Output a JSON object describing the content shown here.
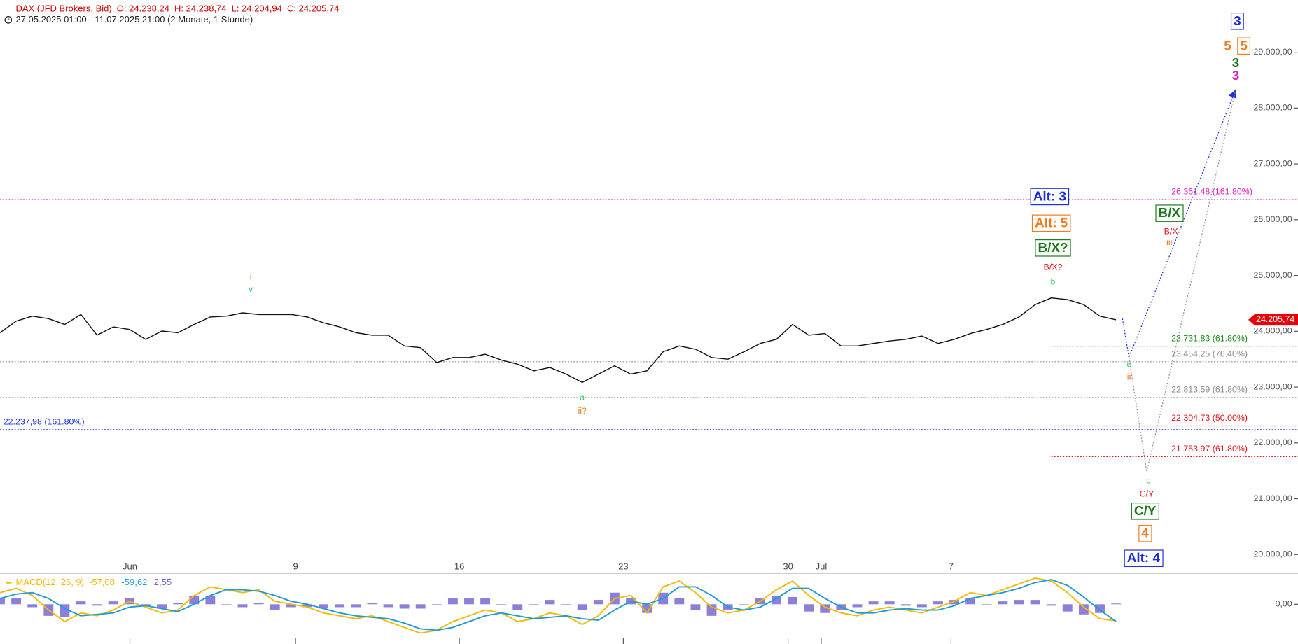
{
  "header": {
    "symbol": "DAX (JFD Brokers, Bid)",
    "open": "O: 24.238,24",
    "high": "H: 24.238,74",
    "low": "L: 24.204,94",
    "close": "C: 24.205,74",
    "range": "27.05.2025 01:00 - 11.07.2025 21:00  (2 Monate, 1 Stunde)"
  },
  "chart_data": [
    {
      "type": "line",
      "x": [
        0,
        1,
        2,
        3,
        4,
        5,
        6,
        7,
        8,
        9,
        10,
        11,
        12,
        13,
        14,
        15,
        16,
        17,
        18,
        19,
        20,
        21,
        22,
        23,
        24,
        25,
        26,
        27,
        28,
        29,
        30,
        31,
        32,
        33,
        34,
        35,
        36,
        37,
        38,
        39,
        40,
        41,
        42,
        43,
        44,
        45,
        46,
        47,
        48,
        49,
        50,
        51,
        52,
        53,
        54,
        55,
        56,
        57,
        58,
        59,
        60,
        61,
        62,
        63,
        64,
        65,
        66,
        67,
        68,
        69
      ],
      "series": [
        {
          "color": "#111111",
          "values": [
            23974,
            24181,
            24270,
            24226,
            24122,
            24300,
            23929,
            24078,
            24033,
            23855,
            24004,
            23974,
            24122,
            24256,
            24270,
            24330,
            24300,
            24300,
            24300,
            24256,
            24152,
            24078,
            23974,
            23929,
            23929,
            23737,
            23707,
            23440,
            23529,
            23529,
            23588,
            23485,
            23410,
            23292,
            23351,
            23232,
            23084,
            23232,
            23381,
            23232,
            23292,
            23633,
            23737,
            23677,
            23529,
            23499,
            23633,
            23781,
            23855,
            24122,
            23929,
            23959,
            23737,
            23737,
            23781,
            23826,
            23855,
            23915,
            23781,
            23855,
            23959,
            24033,
            24122,
            24256,
            24478,
            24597,
            24567,
            24478,
            24270,
            24206
          ]
        }
      ],
      "xlim": [
        0,
        80.25
      ],
      "ylim": [
        19674,
        29935
      ],
      "xticks": [
        {
          "value": 8.03,
          "label": "Jun"
        },
        {
          "value": 18.27,
          "label": "9"
        },
        {
          "value": 28.4,
          "label": "16"
        },
        {
          "value": 38.54,
          "label": "23"
        },
        {
          "value": 48.72,
          "label": "30"
        },
        {
          "value": 50.77,
          "label": "Jul"
        },
        {
          "value": 58.8,
          "label": "7"
        }
      ],
      "yticks": [
        {
          "value": 20000,
          "label": "20.000,00"
        },
        {
          "value": 21000,
          "label": "21.000,00"
        },
        {
          "value": 22000,
          "label": "22.000,00"
        },
        {
          "value": 23000,
          "label": "23.000,00"
        },
        {
          "value": 24000,
          "label": "24.000,00"
        },
        {
          "value": 25000,
          "label": "25.000,00"
        },
        {
          "value": 26000,
          "label": "26.000,00"
        },
        {
          "value": 27000,
          "label": "27.000,00"
        },
        {
          "value": 28000,
          "label": "28.000,00"
        },
        {
          "value": 29000,
          "label": "29.000,00"
        }
      ],
      "last": {
        "value": 24205.74,
        "label": "24.205,74",
        "color": "#e8000b"
      },
      "levels": [
        {
          "value": 26361.48,
          "label": "26.361,48 (161.80%)",
          "color": "#e020c0",
          "label_side": "right"
        },
        {
          "value": 23454.25,
          "label": "23.454,25 (76.40%)",
          "color": "#8a8a8a",
          "label_side": "right"
        },
        {
          "value": 22813.59,
          "label": "22.813,59 (61.80%)",
          "color": "#8a8a8a",
          "label_side": "right"
        },
        {
          "value": 22237.98,
          "label": "22.237,98 (161.80%)",
          "color": "#1a2fd6",
          "label_side": "left"
        },
        {
          "value": 23731.83,
          "label": "23.731,83 (61.80%)",
          "color": "#1a8a1a",
          "label_side": "right",
          "from_x": 65
        },
        {
          "value": 22304.73,
          "label": "22.304,73 (50.00%)",
          "color": "#e0101a",
          "label_side": "right",
          "from_x": 65
        },
        {
          "value": 21753.97,
          "label": "21.753,97 (61.80%)",
          "color": "#e0101a",
          "label_side": "right",
          "from_x": 65
        }
      ],
      "projections": [
        {
          "color": "#1a2fd6",
          "x": [
            69.4,
            69.8,
            76.4
          ],
          "values": [
            24226,
            23529,
            28333
          ],
          "arrow": true
        },
        {
          "color": "#8a8a9a",
          "x": [
            69.8,
            70.9,
            76.4
          ],
          "values": [
            23529,
            21483,
            28333
          ]
        }
      ],
      "annotations": [
        {
          "text": "i",
          "x": 15.5,
          "y": 24967,
          "color": "#f07b1a"
        },
        {
          "text": "v",
          "x": 15.5,
          "y": 24745,
          "color": "#33cc66"
        },
        {
          "text": "a",
          "x": 36.0,
          "y": 22802,
          "color": "#33cc66"
        },
        {
          "text": "ii?",
          "x": 36.0,
          "y": 22565,
          "color": "#f07b1a"
        },
        {
          "text": "b",
          "x": 65.1,
          "y": 24878,
          "color": "#33cc66"
        },
        {
          "text": "B/X?",
          "x": 65.1,
          "y": 25145,
          "color": "#e0101a"
        },
        {
          "text": "B/X?",
          "x": 65.1,
          "y": 25486,
          "color": "#1a7a1a",
          "box": true
        },
        {
          "text": "Alt: 5",
          "x": 65.0,
          "y": 25931,
          "color": "#f07b1a",
          "box": true
        },
        {
          "text": "Alt: 3",
          "x": 64.9,
          "y": 26406,
          "color": "#1a2fd6",
          "box": true
        },
        {
          "text": "c",
          "x": 69.8,
          "y": 23396,
          "color": "#33cc66"
        },
        {
          "text": "ii",
          "x": 69.8,
          "y": 23173,
          "color": "#f07b1a"
        },
        {
          "text": "B/X",
          "x": 72.3,
          "y": 26109,
          "color": "#1a7a1a",
          "box": true
        },
        {
          "text": "B/X",
          "x": 72.4,
          "y": 25783,
          "color": "#e0101a"
        },
        {
          "text": "iii",
          "x": 72.3,
          "y": 25590,
          "color": "#f07b1a"
        },
        {
          "text": "c",
          "x": 71.0,
          "y": 21320,
          "color": "#33cc66"
        },
        {
          "text": "C/Y",
          "x": 70.9,
          "y": 21082,
          "color": "#e0101a"
        },
        {
          "text": "C/Y",
          "x": 70.8,
          "y": 20771,
          "color": "#1a7a1a",
          "box": true
        },
        {
          "text": "4",
          "x": 70.8,
          "y": 20371,
          "color": "#f07b1a",
          "box": true
        },
        {
          "text": "Alt: 4",
          "x": 70.7,
          "y": 19926,
          "color": "#1a2fd6",
          "box": true
        },
        {
          "text": "3",
          "x": 76.5,
          "y": 29549,
          "color": "#1a2fd6",
          "box": true
        },
        {
          "text": "5",
          "x": 75.9,
          "y": 29104,
          "color": "#f07b1a",
          "bold": true
        },
        {
          "text": "5",
          "x": 76.9,
          "y": 29104,
          "color": "#f07b1a",
          "box": true
        },
        {
          "text": "3",
          "x": 76.4,
          "y": 28793,
          "color": "#1a7a1a",
          "bold": true
        },
        {
          "text": "3",
          "x": 76.4,
          "y": 28570,
          "color": "#e020c0",
          "bold": true
        }
      ]
    },
    {
      "type": "macd",
      "title": "MACD(12, 26, 9)",
      "x": [
        0,
        1,
        2,
        3,
        4,
        5,
        6,
        7,
        8,
        9,
        10,
        11,
        12,
        13,
        14,
        15,
        16,
        17,
        18,
        19,
        20,
        21,
        22,
        23,
        24,
        25,
        26,
        27,
        28,
        29,
        30,
        31,
        32,
        33,
        34,
        35,
        36,
        37,
        38,
        39,
        40,
        41,
        42,
        43,
        44,
        45,
        46,
        47,
        48,
        49,
        50,
        51,
        52,
        53,
        54,
        55,
        56,
        57,
        58,
        59,
        60,
        61,
        62,
        63,
        64,
        65,
        66,
        67,
        68,
        69
      ],
      "ylim": [
        -137,
        103
      ],
      "yticks": [
        {
          "value": 0,
          "label": "0,00"
        }
      ],
      "series": [
        {
          "kind": "bar",
          "color": "#6f5fd0",
          "values": [
            20,
            20,
            -10,
            -40,
            -45,
            10,
            -5,
            10,
            20,
            -5,
            -15,
            5,
            30,
            30,
            0,
            -10,
            5,
            -20,
            -10,
            -10,
            -15,
            -10,
            -10,
            5,
            -10,
            -15,
            -15,
            0,
            20,
            20,
            20,
            0,
            -20,
            0,
            15,
            0,
            -20,
            15,
            40,
            20,
            -30,
            40,
            20,
            -20,
            -40,
            -20,
            0,
            20,
            30,
            25,
            -25,
            -30,
            -20,
            -10,
            10,
            10,
            -5,
            -10,
            10,
            15,
            20,
            0,
            10,
            15,
            15,
            -5,
            -25,
            -35,
            -30,
            2.55
          ],
          "value_labels": [
            null,
            null,
            null,
            null,
            null,
            null,
            null,
            null,
            null,
            null,
            null,
            null,
            null,
            null,
            null,
            null,
            null,
            null,
            null,
            null,
            null,
            null,
            null,
            null,
            null,
            null,
            null,
            null,
            null,
            null,
            null,
            null,
            null,
            null,
            null,
            null,
            null,
            null,
            null,
            null,
            null,
            null,
            null,
            null,
            null,
            null,
            null,
            null,
            null,
            null,
            null,
            null,
            null,
            null,
            null,
            null,
            null,
            null,
            null,
            null,
            null,
            null,
            null,
            null,
            null,
            null,
            null,
            null,
            null,
            "2,55"
          ]
        },
        {
          "kind": "line",
          "color": "#f5b800",
          "values": [
            40,
            55,
            30,
            -20,
            -60,
            -30,
            -40,
            -20,
            10,
            -10,
            -30,
            -20,
            30,
            60,
            50,
            40,
            50,
            10,
            0,
            -10,
            -30,
            -40,
            -50,
            -40,
            -60,
            -80,
            -100,
            -90,
            -60,
            -40,
            -20,
            -30,
            -60,
            -50,
            -30,
            -40,
            -70,
            -40,
            20,
            30,
            -30,
            60,
            80,
            40,
            -10,
            -30,
            -20,
            10,
            50,
            80,
            30,
            -10,
            -30,
            -40,
            -20,
            -10,
            -20,
            -30,
            -10,
            10,
            40,
            30,
            50,
            70,
            90,
            80,
            40,
            -10,
            -50,
            -57.08
          ],
          "value_labels": [
            null,
            null,
            null,
            null,
            null,
            null,
            null,
            null,
            null,
            null,
            null,
            null,
            null,
            null,
            null,
            null,
            null,
            null,
            null,
            null,
            null,
            null,
            null,
            null,
            null,
            null,
            null,
            null,
            null,
            null,
            null,
            null,
            null,
            null,
            null,
            null,
            null,
            null,
            null,
            null,
            null,
            null,
            null,
            null,
            null,
            null,
            null,
            null,
            null,
            null,
            null,
            null,
            null,
            null,
            null,
            null,
            null,
            null,
            null,
            null,
            null,
            null,
            null,
            null,
            null,
            null,
            null,
            null,
            null,
            "-57,08"
          ]
        },
        {
          "kind": "line",
          "color": "#1e9bd7",
          "values": [
            20,
            35,
            40,
            20,
            -15,
            -40,
            -35,
            -30,
            -10,
            -5,
            -15,
            -25,
            0,
            30,
            50,
            50,
            45,
            30,
            10,
            0,
            -15,
            -30,
            -40,
            -45,
            -50,
            -65,
            -85,
            -90,
            -80,
            -60,
            -40,
            -30,
            -40,
            -50,
            -45,
            -40,
            -50,
            -55,
            -20,
            10,
            0,
            20,
            60,
            60,
            30,
            -10,
            -20,
            -10,
            20,
            55,
            55,
            20,
            -10,
            -30,
            -30,
            -20,
            -15,
            -20,
            -20,
            -5,
            20,
            30,
            40,
            55,
            75,
            85,
            65,
            25,
            -20,
            -59.62
          ],
          "value_labels": [
            null,
            null,
            null,
            null,
            null,
            null,
            null,
            null,
            null,
            null,
            null,
            null,
            null,
            null,
            null,
            null,
            null,
            null,
            null,
            null,
            null,
            null,
            null,
            null,
            null,
            null,
            null,
            null,
            null,
            null,
            null,
            null,
            null,
            null,
            null,
            null,
            null,
            null,
            null,
            null,
            null,
            null,
            null,
            null,
            null,
            null,
            null,
            null,
            null,
            null,
            null,
            null,
            null,
            null,
            null,
            null,
            null,
            null,
            null,
            null,
            null,
            null,
            null,
            null,
            null,
            null,
            null,
            null,
            null,
            "-59,62"
          ]
        }
      ]
    }
  ]
}
